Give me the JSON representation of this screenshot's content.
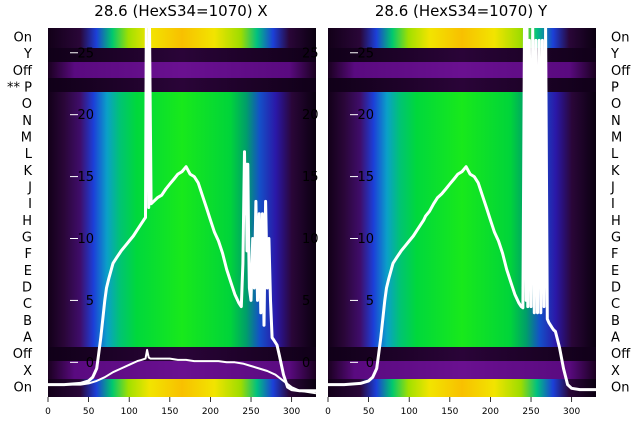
{
  "row_labels": [
    "On",
    "Y",
    "Off",
    "** P",
    "O",
    "N",
    "M",
    "L",
    "K",
    "J",
    "I",
    "H",
    "G",
    "F",
    "E",
    "D",
    "C",
    "B",
    "A",
    "Off",
    "X",
    "On"
  ],
  "row_labels_right": [
    "On",
    "Y",
    "Off",
    "P",
    "O",
    "N",
    "M",
    "L",
    "K",
    "J",
    "I",
    "H",
    "G",
    "F",
    "E",
    "D",
    "C",
    "B",
    "A",
    "Off",
    "X",
    "On"
  ],
  "chart_data": [
    {
      "type": "line",
      "title": "28.6 (HexS34=1070) X",
      "xlabel": "",
      "ylabel": "",
      "xlim": [
        0,
        330
      ],
      "ylim": [
        -2.8,
        27
      ],
      "x_ticks": [
        "0",
        "50",
        "100",
        "150",
        "200",
        "250",
        "300"
      ],
      "y_ticks": [
        "0",
        "5",
        "10",
        "15",
        "20",
        "25"
      ],
      "grid": false,
      "background": "heatmap (spectral colormap)",
      "series": [
        {
          "x": [
            0,
            20,
            40,
            50,
            55,
            60,
            62,
            65,
            68,
            70,
            72,
            75,
            78,
            80,
            85,
            88,
            90,
            95,
            100,
            105,
            110,
            115,
            118,
            120,
            121,
            122,
            123,
            124,
            125,
            127,
            130,
            135,
            140,
            145,
            150,
            155,
            160,
            165,
            170,
            175,
            180,
            185,
            190,
            195,
            200,
            205,
            210,
            215,
            220,
            225,
            230,
            235,
            238,
            240,
            242,
            243,
            244,
            245,
            246,
            247,
            248,
            250,
            252,
            254,
            256,
            258,
            260,
            262,
            264,
            266,
            268,
            270,
            272,
            274,
            276,
            278,
            280,
            282,
            285,
            290,
            295,
            300,
            310,
            320,
            330
          ],
          "y": [
            -1.8,
            -1.8,
            -1.7,
            -1.5,
            -1.2,
            -0.5,
            0.5,
            2,
            3.8,
            5,
            6,
            6.8,
            7.5,
            8.0,
            8.5,
            8.8,
            9.0,
            9.4,
            9.8,
            10.2,
            10.7,
            11.2,
            11.5,
            11.7,
            27,
            14,
            25,
            12.5,
            27,
            12.8,
            13.0,
            13.3,
            13.5,
            14.0,
            14.4,
            14.8,
            15.2,
            15.4,
            15.8,
            15.2,
            15.0,
            14.5,
            13.5,
            12.5,
            11.5,
            10.5,
            9.8,
            8.8,
            7.5,
            6.5,
            5.5,
            4.8,
            4.5,
            8,
            17,
            12,
            16,
            9,
            16,
            10,
            6,
            5,
            10,
            6,
            13,
            5,
            12,
            4,
            12,
            3,
            13,
            6,
            10,
            5,
            2,
            1.8,
            1.6,
            1.4,
            0.5,
            -1.0,
            -2.0,
            -2.2,
            -2.3,
            -2.3,
            -2.3
          ]
        },
        {
          "x": [
            0,
            20,
            40,
            50,
            60,
            70,
            80,
            90,
            100,
            110,
            115,
            120,
            122,
            124,
            126,
            130,
            140,
            150,
            160,
            170,
            180,
            190,
            200,
            210,
            220,
            230,
            240,
            250,
            260,
            270,
            280,
            290,
            300,
            310,
            320,
            330
          ],
          "y": [
            -1.8,
            -1.8,
            -1.8,
            -1.7,
            -1.5,
            -1.2,
            -0.8,
            -0.5,
            -0.2,
            0.1,
            0.2,
            0.3,
            1.0,
            0.4,
            0.3,
            0.3,
            0.3,
            0.3,
            0.2,
            0.2,
            0.1,
            0.1,
            0.1,
            0.1,
            0.0,
            0.0,
            -0.1,
            -0.3,
            -0.5,
            -0.7,
            -1.0,
            -1.5,
            -2.0,
            -2.3,
            -2.4,
            -2.5
          ]
        }
      ]
    },
    {
      "type": "line",
      "title": "28.6 (HexS34=1070) Y",
      "xlabel": "",
      "ylabel": "",
      "xlim": [
        0,
        330
      ],
      "ylim": [
        -2.8,
        27
      ],
      "x_ticks": [
        "0",
        "50",
        "100",
        "150",
        "200",
        "250",
        "300"
      ],
      "y_ticks": [
        "0",
        "5",
        "10",
        "15",
        "20",
        "25"
      ],
      "grid": false,
      "background": "heatmap (spectral colormap)",
      "series": [
        {
          "x": [
            0,
            20,
            40,
            50,
            55,
            60,
            62,
            65,
            68,
            70,
            72,
            75,
            78,
            80,
            85,
            88,
            90,
            95,
            100,
            105,
            110,
            115,
            118,
            120,
            125,
            130,
            135,
            140,
            145,
            150,
            155,
            160,
            165,
            170,
            175,
            180,
            185,
            190,
            195,
            200,
            205,
            210,
            215,
            220,
            225,
            230,
            235,
            238,
            240,
            242,
            244,
            245,
            246,
            248,
            250,
            252,
            254,
            256,
            258,
            260,
            262,
            264,
            266,
            268,
            270,
            272,
            274,
            276,
            278,
            280,
            285,
            290,
            295,
            300,
            310,
            320,
            330
          ],
          "y": [
            -1.8,
            -1.8,
            -1.7,
            -1.5,
            -1.2,
            -0.5,
            0.5,
            2,
            3.8,
            5,
            6,
            6.8,
            7.5,
            8.0,
            8.5,
            8.8,
            9.0,
            9.4,
            9.8,
            10.2,
            10.7,
            11.2,
            11.5,
            11.8,
            12.2,
            12.8,
            13.3,
            13.6,
            14.0,
            14.4,
            14.8,
            15.2,
            15.4,
            15.8,
            15.2,
            15.0,
            14.5,
            13.5,
            12.5,
            11.5,
            10.5,
            9.8,
            8.8,
            7.5,
            6.5,
            5.5,
            4.8,
            4.5,
            4.4,
            27,
            5,
            27,
            4.5,
            26,
            4.5,
            27,
            4,
            26,
            4,
            26,
            4,
            26,
            4.5,
            27,
            3.5,
            3.2,
            3.0,
            2.8,
            2.6,
            2.5,
            1.2,
            -0.5,
            -1.8,
            -2.1,
            -2.2,
            -2.2,
            -2.2
          ]
        }
      ]
    }
  ]
}
